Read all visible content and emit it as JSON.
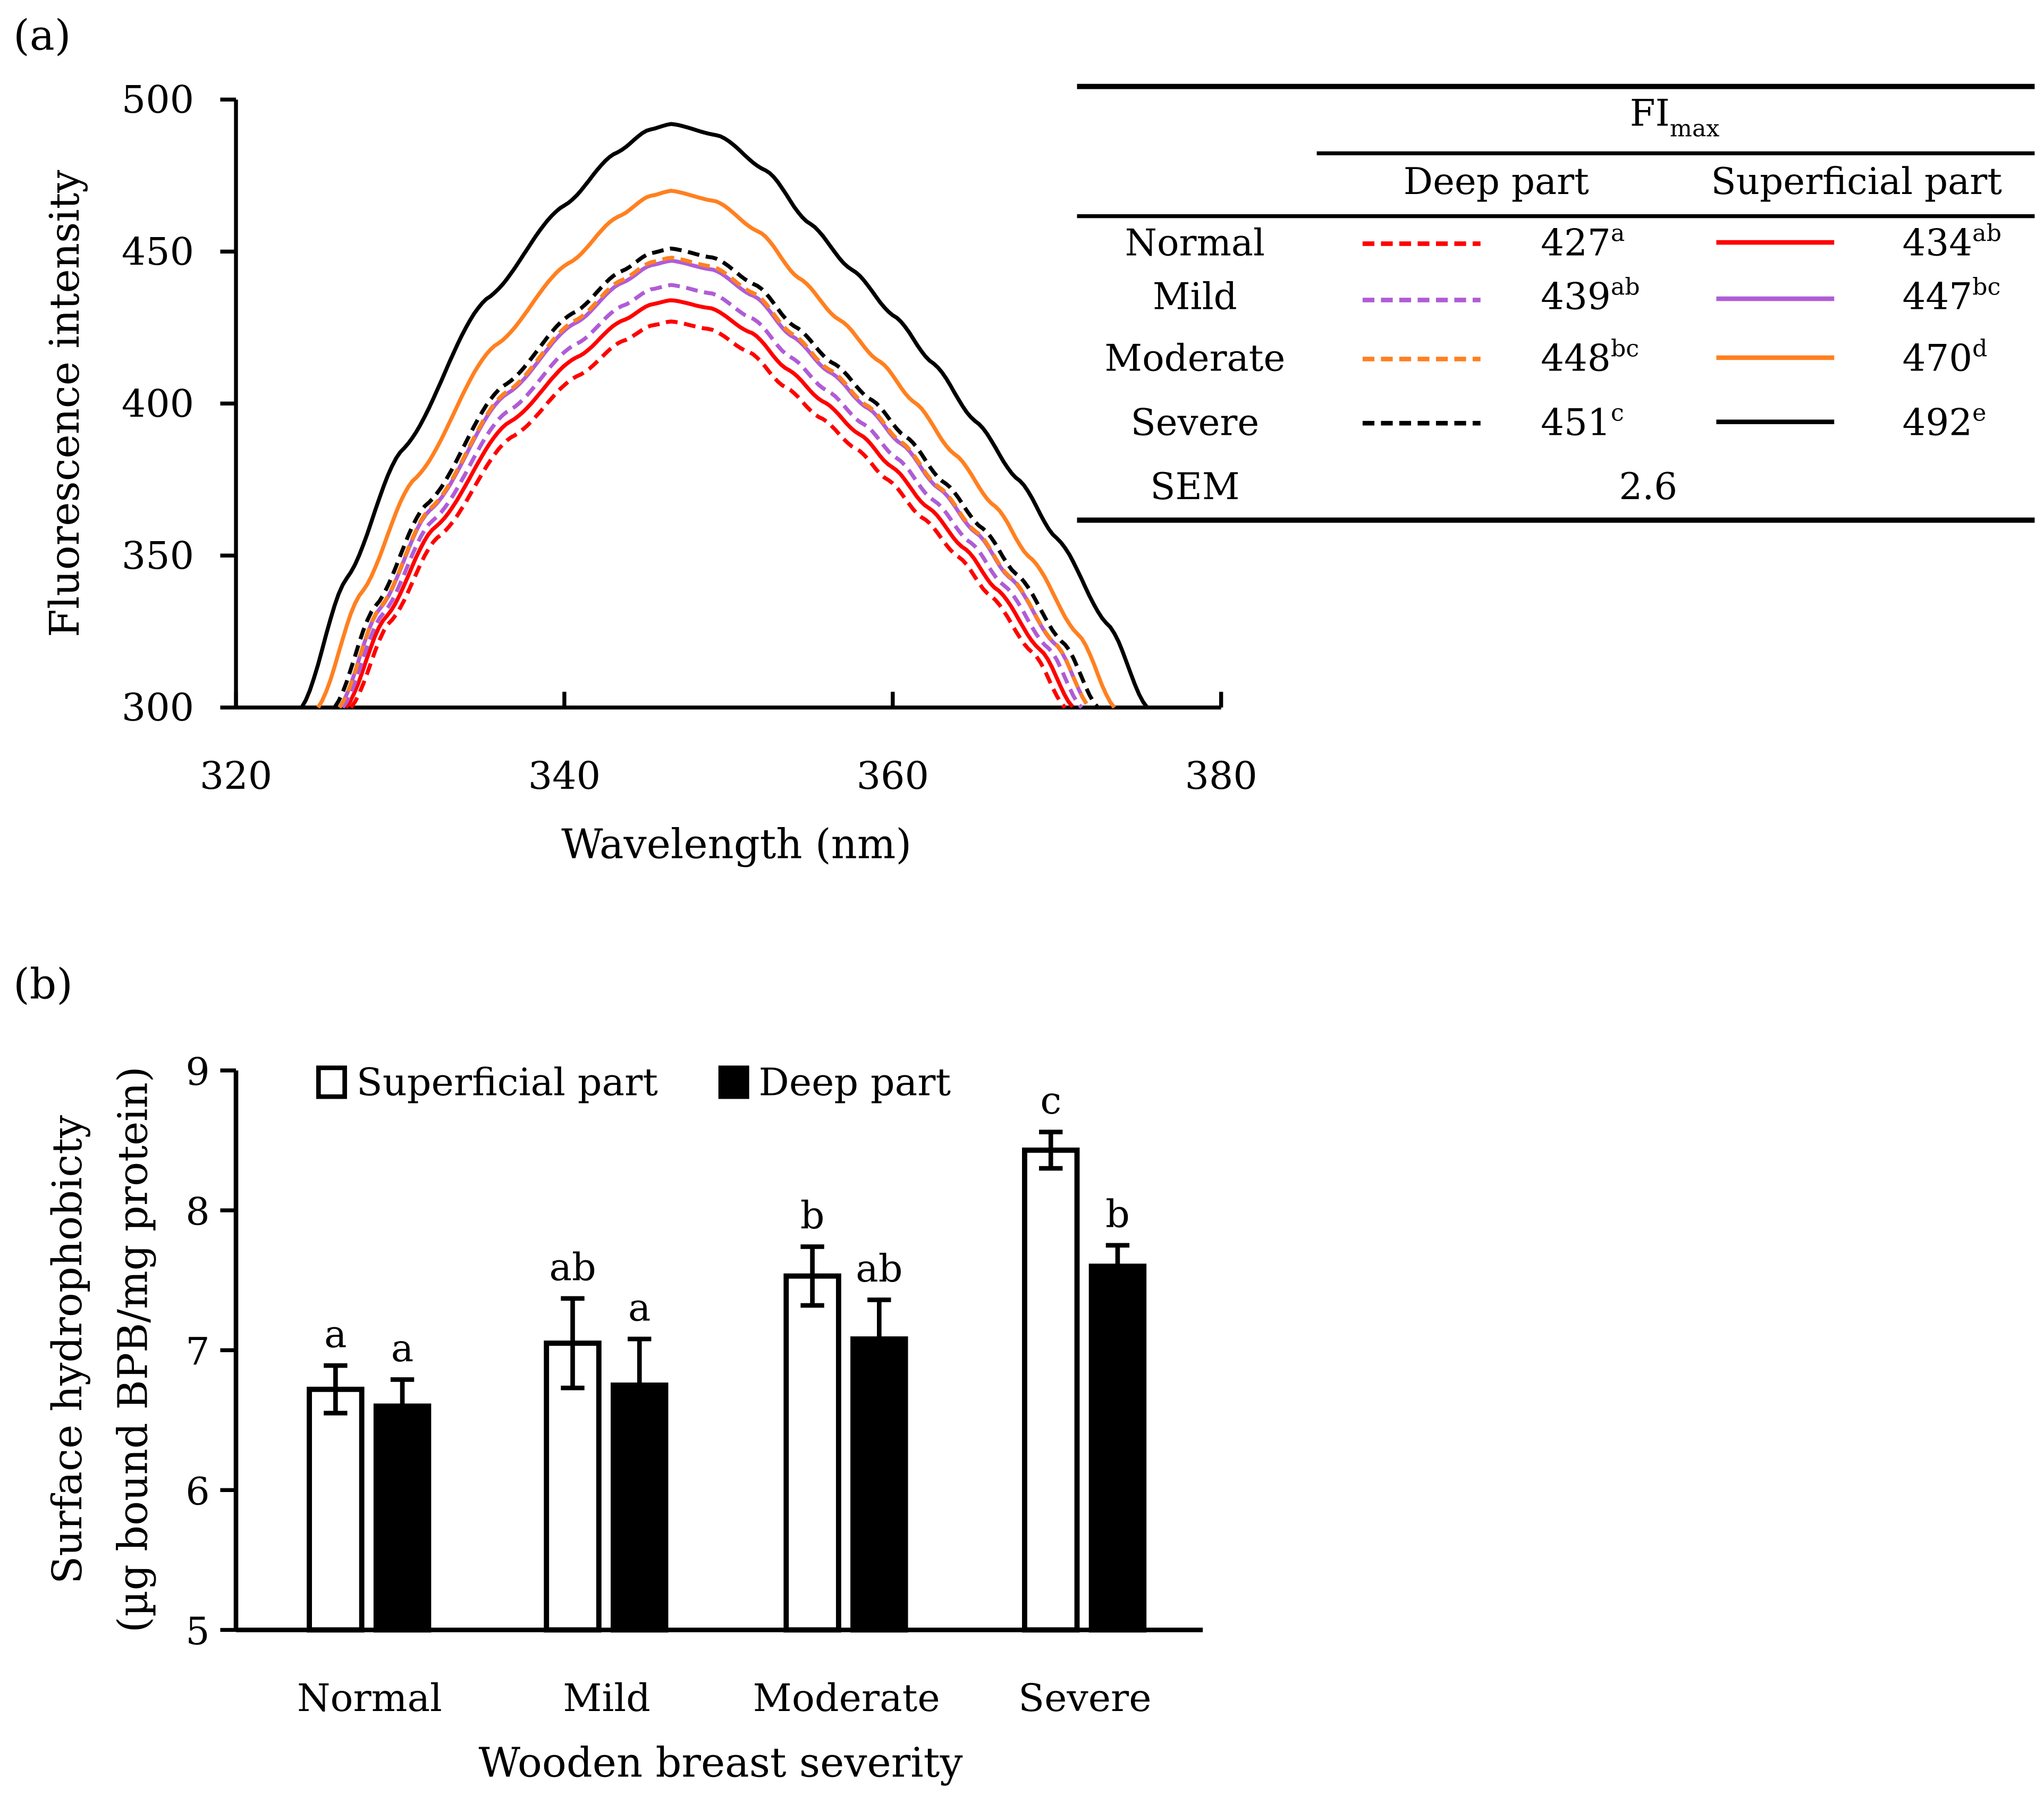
{
  "chart_data": [
    {
      "panel_label": "(a)",
      "type": "line",
      "xlabel": "Wavelength (nm)",
      "ylabel": "Fluorescence intensity",
      "xlim": [
        320,
        380
      ],
      "ylim": [
        300,
        500
      ],
      "xticks": [
        "320",
        "340",
        "360",
        "380"
      ],
      "yticks": [
        "300",
        "350",
        "400",
        "450",
        "500"
      ],
      "grid": false,
      "series": [
        {
          "name": "Normal - Deep part",
          "color": "#ff0000",
          "dash": true,
          "peak_wavelength": 346.5,
          "peak_intensity": 427,
          "x_start": 327.0,
          "x_end": 370.5
        },
        {
          "name": "Normal - Superficial part",
          "color": "#ff0000",
          "dash": false,
          "peak_wavelength": 346.5,
          "peak_intensity": 434,
          "x_start": 326.7,
          "x_end": 371.0
        },
        {
          "name": "Mild - Deep part",
          "color": "#b05cd6",
          "dash": true,
          "peak_wavelength": 346.5,
          "peak_intensity": 439,
          "x_start": 326.5,
          "x_end": 371.5
        },
        {
          "name": "Mild - Superficial part",
          "color": "#b05cd6",
          "dash": false,
          "peak_wavelength": 346.5,
          "peak_intensity": 447,
          "x_start": 326.3,
          "x_end": 372.0
        },
        {
          "name": "Moderate - Deep part",
          "color": "#ff8020",
          "dash": true,
          "peak_wavelength": 346.5,
          "peak_intensity": 448,
          "x_start": 326.3,
          "x_end": 372.0
        },
        {
          "name": "Moderate - Superficial part",
          "color": "#ff8020",
          "dash": false,
          "peak_wavelength": 346.5,
          "peak_intensity": 470,
          "x_start": 325.0,
          "x_end": 373.5
        },
        {
          "name": "Severe - Deep part",
          "color": "#000000",
          "dash": true,
          "peak_wavelength": 346.5,
          "peak_intensity": 451,
          "x_start": 326.0,
          "x_end": 372.5
        },
        {
          "name": "Severe - Superficial part",
          "color": "#000000",
          "dash": false,
          "peak_wavelength": 346.5,
          "peak_intensity": 492,
          "x_start": 324.0,
          "x_end": 375.5
        }
      ],
      "inset_table": {
        "title_main": "FI",
        "title_sub": "max",
        "col_headers": [
          "Deep part",
          "Superficial part"
        ],
        "rows": [
          {
            "label": "Normal",
            "deep": "427",
            "deep_sup": "a",
            "sup": "434",
            "sup_sup": "ab",
            "color": "#ff0000"
          },
          {
            "label": "Mild",
            "deep": "439",
            "deep_sup": "ab",
            "sup": "447",
            "sup_sup": "bc",
            "color": "#b05cd6"
          },
          {
            "label": "Moderate",
            "deep": "448",
            "deep_sup": "bc",
            "sup": "470",
            "sup_sup": "d",
            "color": "#ff8020"
          },
          {
            "label": "Severe",
            "deep": "451",
            "deep_sup": "c",
            "sup": "492",
            "sup_sup": "e",
            "color": "#000000"
          }
        ],
        "sem_label": "SEM",
        "sem_value": "2.6"
      }
    },
    {
      "panel_label": "(b)",
      "type": "bar",
      "xlabel": "Wooden breast severity",
      "ylabel_line1": "Surface hydrophobicty",
      "ylabel_line2": "(µg bound BPB/mg protein)",
      "ylim": [
        5,
        9
      ],
      "yticks": [
        "5",
        "6",
        "7",
        "8",
        "9"
      ],
      "categories": [
        "Normal",
        "Mild",
        "Moderate",
        "Severe"
      ],
      "legend_position": "top-left",
      "series": [
        {
          "name": "Superficial part",
          "fill": "#ffffff",
          "values": [
            6.72,
            7.05,
            7.53,
            8.43
          ],
          "errors": [
            0.17,
            0.32,
            0.21,
            0.13
          ],
          "letters": [
            "a",
            "ab",
            "b",
            "c"
          ]
        },
        {
          "name": "Deep part",
          "fill": "#000000",
          "values": [
            6.6,
            6.75,
            7.08,
            7.6
          ],
          "errors": [
            0.19,
            0.33,
            0.28,
            0.15
          ],
          "letters": [
            "a",
            "a",
            "ab",
            "b"
          ]
        }
      ]
    }
  ]
}
